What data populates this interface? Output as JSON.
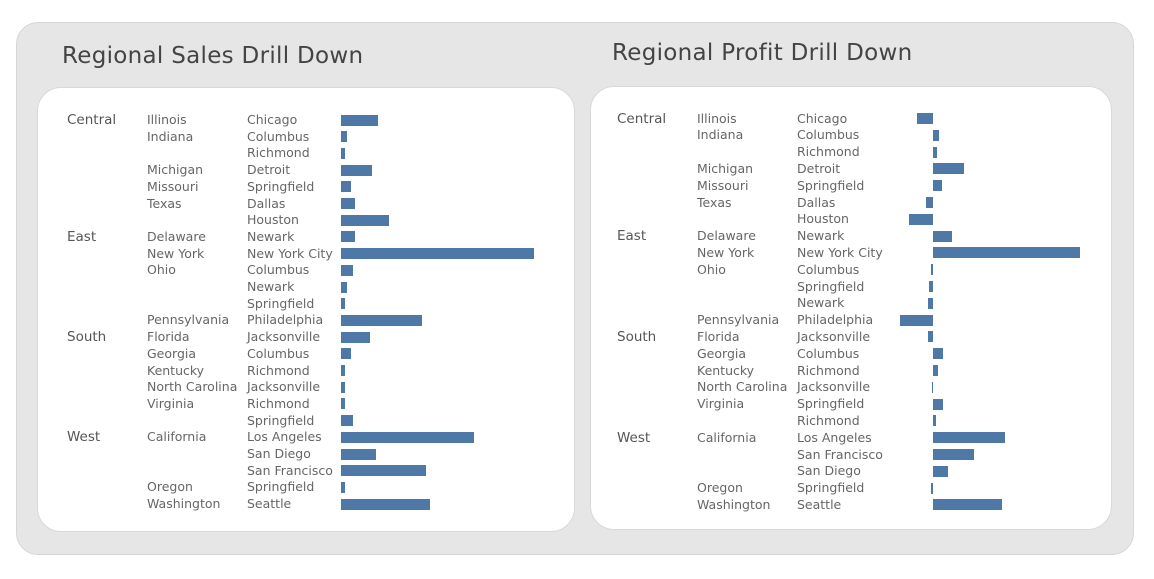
{
  "dashboard": {
    "sales_title": "Regional Sales Drill Down",
    "profit_title": "Regional Profit Drill Down"
  },
  "colors": {
    "bar": "#4e79a7",
    "background": "#e6e6e6",
    "card": "#ffffff"
  },
  "chart_data": [
    {
      "type": "bar",
      "orientation": "horizontal",
      "title": "Regional Sales Drill Down",
      "value_range": [
        0,
        100
      ],
      "rows": [
        {
          "region": "Central",
          "state": "Illinois",
          "city": "Chicago",
          "value": 19
        },
        {
          "region": "",
          "state": "Indiana",
          "city": "Columbus",
          "value": 3
        },
        {
          "region": "",
          "state": "",
          "city": "Richmond",
          "value": 2
        },
        {
          "region": "",
          "state": "Michigan",
          "city": "Detroit",
          "value": 16
        },
        {
          "region": "",
          "state": "Missouri",
          "city": "Springfield",
          "value": 5
        },
        {
          "region": "",
          "state": "Texas",
          "city": "Dallas",
          "value": 7
        },
        {
          "region": "",
          "state": "",
          "city": "Houston",
          "value": 25
        },
        {
          "region": "East",
          "state": "Delaware",
          "city": "Newark",
          "value": 7
        },
        {
          "region": "",
          "state": "New York",
          "city": "New York City",
          "value": 100
        },
        {
          "region": "",
          "state": "Ohio",
          "city": "Columbus",
          "value": 6
        },
        {
          "region": "",
          "state": "",
          "city": "Newark",
          "value": 3
        },
        {
          "region": "",
          "state": "",
          "city": "Springfield",
          "value": 2
        },
        {
          "region": "",
          "state": "Pennsylvania",
          "city": "Philadelphia",
          "value": 42
        },
        {
          "region": "South",
          "state": "Florida",
          "city": "Jacksonville",
          "value": 15
        },
        {
          "region": "",
          "state": "Georgia",
          "city": "Columbus",
          "value": 5
        },
        {
          "region": "",
          "state": "Kentucky",
          "city": "Richmond",
          "value": 2
        },
        {
          "region": "",
          "state": "North Carolina",
          "city": "Jacksonville",
          "value": 2
        },
        {
          "region": "",
          "state": "Virginia",
          "city": "Richmond",
          "value": 2
        },
        {
          "region": "",
          "state": "",
          "city": "Springfield",
          "value": 6
        },
        {
          "region": "West",
          "state": "California",
          "city": "Los Angeles",
          "value": 69
        },
        {
          "region": "",
          "state": "",
          "city": "San Diego",
          "value": 18
        },
        {
          "region": "",
          "state": "",
          "city": "San Francisco",
          "value": 44
        },
        {
          "region": "",
          "state": "Oregon",
          "city": "Springfield",
          "value": 2
        },
        {
          "region": "",
          "state": "Washington",
          "city": "Seattle",
          "value": 46
        }
      ]
    },
    {
      "type": "bar",
      "orientation": "horizontal",
      "title": "Regional Profit Drill Down",
      "value_range": [
        -33,
        147
      ],
      "rows": [
        {
          "region": "Central",
          "state": "Illinois",
          "city": "Chicago",
          "value": -16
        },
        {
          "region": "",
          "state": "Indiana",
          "city": "Columbus",
          "value": 6
        },
        {
          "region": "",
          "state": "",
          "city": "Richmond",
          "value": 4
        },
        {
          "region": "",
          "state": "Michigan",
          "city": "Detroit",
          "value": 31
        },
        {
          "region": "",
          "state": "Missouri",
          "city": "Springfield",
          "value": 9
        },
        {
          "region": "",
          "state": "Texas",
          "city": "Dallas",
          "value": -7
        },
        {
          "region": "",
          "state": "",
          "city": "Houston",
          "value": -24
        },
        {
          "region": "East",
          "state": "Delaware",
          "city": "Newark",
          "value": 19
        },
        {
          "region": "",
          "state": "New York",
          "city": "New York City",
          "value": 147
        },
        {
          "region": "",
          "state": "Ohio",
          "city": "Columbus",
          "value": -2
        },
        {
          "region": "",
          "state": "",
          "city": "Springfield",
          "value": -4
        },
        {
          "region": "",
          "state": "",
          "city": "Newark",
          "value": -5
        },
        {
          "region": "",
          "state": "Pennsylvania",
          "city": "Philadelphia",
          "value": -33
        },
        {
          "region": "South",
          "state": "Florida",
          "city": "Jacksonville",
          "value": -5
        },
        {
          "region": "",
          "state": "Georgia",
          "city": "Columbus",
          "value": 10
        },
        {
          "region": "",
          "state": "Kentucky",
          "city": "Richmond",
          "value": 5
        },
        {
          "region": "",
          "state": "North Carolina",
          "city": "Jacksonville",
          "value": -1
        },
        {
          "region": "",
          "state": "Virginia",
          "city": "Springfield",
          "value": 10
        },
        {
          "region": "",
          "state": "",
          "city": "Richmond",
          "value": 3
        },
        {
          "region": "West",
          "state": "California",
          "city": "Los Angeles",
          "value": 72
        },
        {
          "region": "",
          "state": "",
          "city": "San Francisco",
          "value": 41
        },
        {
          "region": "",
          "state": "",
          "city": "San Diego",
          "value": 15
        },
        {
          "region": "",
          "state": "Oregon",
          "city": "Springfield",
          "value": -2
        },
        {
          "region": "",
          "state": "Washington",
          "city": "Seattle",
          "value": 69
        }
      ]
    }
  ]
}
